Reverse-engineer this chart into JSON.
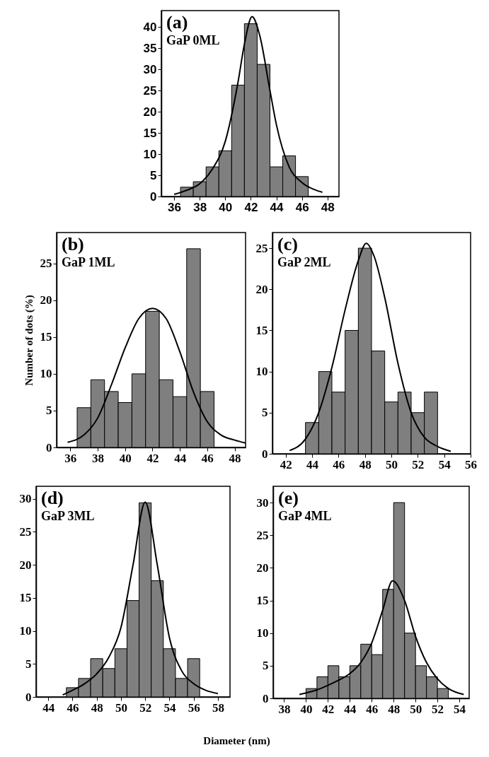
{
  "chart_data": [
    {
      "type": "histogram",
      "annotations": [
        "(a)",
        "GaP 0ML"
      ],
      "color": "#7f7f7f",
      "bins": [
        36.5,
        37.5,
        38.5,
        39.5,
        40.5,
        41.5,
        42.5,
        43.5,
        44.5,
        45.5,
        46.5
      ],
      "values": [
        2.2,
        3.5,
        7,
        10.8,
        26.3,
        40.8,
        31.2,
        7,
        9.6,
        4.7
      ],
      "series": [
        {
          "type": "line",
          "color": "#000000",
          "x": [
            36,
            37,
            38,
            39,
            40,
            41,
            41.5,
            42.1,
            42.7,
            43.5,
            44,
            45,
            46,
            47,
            47.6
          ],
          "values": [
            0.5,
            1.5,
            3,
            6.5,
            13,
            27,
            36,
            42.5,
            38,
            25,
            17,
            7,
            3.3,
            1.6,
            1
          ]
        }
      ],
      "xlim": [
        35,
        48.9
      ],
      "xticks": [
        36,
        38,
        40,
        42,
        44,
        46,
        48
      ],
      "ylim": [
        0,
        43.9
      ],
      "yticks": [
        0,
        5,
        10,
        15,
        20,
        25,
        30,
        35,
        40
      ]
    },
    {
      "type": "histogram",
      "ylabel": "Number of dots (%)",
      "annotations": [
        "(b)",
        "GaP 1ML"
      ],
      "color": "#7f7f7f",
      "bins": [
        36.5,
        37.5,
        38.5,
        39.5,
        40.5,
        41.5,
        42.5,
        43.5,
        44.5,
        45.5,
        46.5
      ],
      "values": [
        5.4,
        9.2,
        7.6,
        6.1,
        10,
        18.5,
        9.2,
        6.9,
        27,
        7.6
      ],
      "series": [
        {
          "type": "line",
          "color": "#000000",
          "x": [
            35.8,
            37,
            38,
            39,
            40,
            41,
            42,
            43,
            44,
            45,
            46,
            47,
            48,
            48.8
          ],
          "values": [
            0.7,
            1.7,
            4,
            8.5,
            13.5,
            17.5,
            18.9,
            17.5,
            13,
            7.5,
            3.5,
            1.7,
            1,
            0.6
          ]
        }
      ],
      "xlim": [
        35,
        48.8
      ],
      "xticks": [
        36,
        38,
        40,
        42,
        44,
        46,
        48
      ],
      "ylim": [
        0,
        29.2
      ],
      "yticks": [
        0,
        5,
        10,
        15,
        20,
        25
      ]
    },
    {
      "type": "histogram",
      "annotations": [
        "(c)",
        "GaP 2ML"
      ],
      "color": "#7f7f7f",
      "bins": [
        43.5,
        44.5,
        45.5,
        46.5,
        47.5,
        48.5,
        49.5,
        50.5,
        51.5,
        52.5,
        53.5
      ],
      "values": [
        3.8,
        10,
        7.5,
        15,
        25,
        12.5,
        6.3,
        7.5,
        5,
        7.5
      ],
      "series": [
        {
          "type": "line",
          "color": "#000000",
          "x": [
            42.3,
            43.5,
            44.5,
            45.5,
            46.5,
            47.5,
            48.1,
            48.7,
            49.5,
            50.5,
            51.5,
            52.5,
            53.5,
            54.5
          ],
          "values": [
            0.4,
            1.8,
            5,
            10.5,
            17.5,
            23.5,
            25.6,
            24,
            19,
            11,
            5,
            2,
            0.9,
            0.3
          ]
        }
      ],
      "xlim": [
        41,
        56
      ],
      "xticks": [
        42,
        44,
        46,
        48,
        50,
        52,
        54,
        56
      ],
      "ylim": [
        0,
        26.9
      ],
      "yticks": [
        0,
        5,
        10,
        15,
        20,
        25
      ]
    },
    {
      "type": "histogram",
      "xlabel": "Diameter (nm)",
      "annotations": [
        "(d)",
        "GaP 3ML"
      ],
      "color": "#7f7f7f",
      "bins": [
        45.5,
        46.5,
        47.5,
        48.5,
        49.5,
        50.5,
        51.5,
        52.5,
        53.5,
        54.5,
        55.5,
        56.5
      ],
      "values": [
        1.4,
        2.8,
        5.8,
        4.3,
        7.3,
        14.6,
        29.4,
        17.6,
        7.3,
        2.8,
        5.8
      ],
      "series": [
        {
          "type": "line",
          "color": "#000000",
          "x": [
            45.2,
            46,
            47,
            48,
            49,
            50,
            51,
            52,
            53,
            54,
            55,
            56,
            57,
            58
          ],
          "values": [
            0.3,
            1,
            2,
            3.5,
            6,
            10.5,
            20,
            29.5,
            20,
            9,
            4,
            2,
            1,
            0.5
          ]
        }
      ],
      "xlim": [
        43,
        59
      ],
      "xticks": [
        44,
        46,
        48,
        50,
        52,
        54,
        56,
        58
      ],
      "ylim": [
        0,
        31.9
      ],
      "yticks": [
        0,
        5,
        10,
        15,
        20,
        25,
        30
      ]
    },
    {
      "type": "histogram",
      "annotations": [
        "(e)",
        "GaP 4ML"
      ],
      "color": "#7f7f7f",
      "bins": [
        40,
        41,
        42,
        43,
        44,
        45,
        46,
        47,
        48,
        49,
        50,
        51,
        52,
        53
      ],
      "values": [
        1.5,
        3.3,
        5,
        3.3,
        5,
        8.3,
        6.7,
        16.7,
        30,
        10,
        5,
        3.3,
        1.5
      ],
      "series": [
        {
          "type": "line",
          "color": "#000000",
          "x": [
            39.4,
            41,
            42,
            43,
            44,
            45,
            46,
            47,
            47.9,
            49,
            50,
            51,
            52,
            53,
            54.4
          ],
          "values": [
            0.6,
            1.3,
            2,
            2.8,
            3.8,
            5.5,
            8.5,
            13.5,
            18,
            15,
            9.5,
            5.5,
            3,
            1.5,
            0.6
          ]
        }
      ],
      "xlim": [
        37,
        54.9
      ],
      "xticks": [
        38,
        40,
        42,
        44,
        46,
        48,
        50,
        52,
        54
      ],
      "ylim": [
        0,
        32.5
      ],
      "yticks": [
        0,
        5,
        10,
        15,
        20,
        25,
        30
      ]
    }
  ]
}
